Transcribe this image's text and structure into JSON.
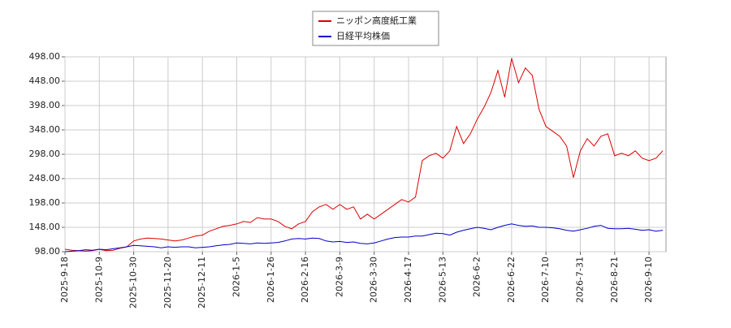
{
  "chart_data": {
    "type": "line",
    "categories": [
      "2025-9-18",
      null,
      null,
      null,
      null,
      "2025-10-9",
      null,
      null,
      null,
      null,
      "2025-10-30",
      null,
      null,
      null,
      null,
      "2025-11-20",
      null,
      null,
      null,
      null,
      "2025-12-11",
      null,
      null,
      null,
      null,
      "2026-1-5",
      null,
      null,
      null,
      null,
      "2026-1-26",
      null,
      null,
      null,
      null,
      "2026-2-16",
      null,
      null,
      null,
      null,
      "2026-3-9",
      null,
      null,
      null,
      null,
      "2026-3-30",
      null,
      null,
      null,
      null,
      "2026-4-17",
      null,
      null,
      null,
      null,
      "2026-5-13",
      null,
      null,
      null,
      null,
      "2026-6-2",
      null,
      null,
      null,
      null,
      "2026-6-22",
      null,
      null,
      null,
      null,
      "2026-7-10",
      null,
      null,
      null,
      null,
      "2026-7-31",
      null,
      null,
      null,
      null,
      "2026-8-21",
      null,
      null,
      null,
      null,
      "2026-9-10",
      null,
      null
    ],
    "series": [
      {
        "name": "ニッポン高度紙工業",
        "color": "#dd0000",
        "values": [
          103,
          101,
          100,
          99,
          100,
          103,
          100,
          101,
          105,
          108,
          120,
          124,
          126,
          125,
          124,
          122,
          120,
          122,
          126,
          130,
          132,
          140,
          145,
          150,
          152,
          155,
          160,
          158,
          168,
          165,
          165,
          160,
          150,
          145,
          155,
          160,
          180,
          190,
          195,
          185,
          195,
          185,
          190,
          165,
          175,
          165,
          175,
          185,
          195,
          205,
          200,
          210,
          285,
          295,
          300,
          290,
          305,
          355,
          320,
          340,
          370,
          395,
          425,
          470,
          415,
          495,
          445,
          475,
          460,
          390,
          355,
          345,
          335,
          315,
          250,
          305,
          330,
          315,
          335,
          340,
          295,
          300,
          295,
          305,
          290,
          285,
          290,
          305
        ]
      },
      {
        "name": "日経平均株価",
        "color": "#0000cc",
        "values": [
          98,
          99,
          100,
          102,
          101,
          103,
          102,
          104,
          106,
          108,
          111,
          110,
          109,
          108,
          106,
          108,
          107,
          108,
          108,
          106,
          107,
          108,
          110,
          112,
          113,
          116,
          115,
          114,
          116,
          115,
          116,
          117,
          120,
          124,
          125,
          124,
          126,
          125,
          120,
          118,
          119,
          117,
          118,
          115,
          114,
          116,
          120,
          124,
          127,
          128,
          128,
          130,
          130,
          133,
          136,
          135,
          132,
          138,
          142,
          145,
          148,
          146,
          143,
          148,
          152,
          155,
          152,
          150,
          151,
          148,
          148,
          147,
          145,
          142,
          140,
          143,
          146,
          150,
          152,
          146,
          145,
          145,
          146,
          144,
          142,
          143,
          140,
          142
        ]
      }
    ],
    "ylim": [
      98,
      498
    ],
    "yticks": [
      {
        "value": 98,
        "label": "98.00"
      },
      {
        "value": 148,
        "label": "148.00"
      },
      {
        "value": 198,
        "label": "198.00"
      },
      {
        "value": 248,
        "label": "248.00"
      },
      {
        "value": 298,
        "label": "298.00"
      },
      {
        "value": 348,
        "label": "348.00"
      },
      {
        "value": 398,
        "label": "398.00"
      },
      {
        "value": 448,
        "label": "448.00"
      },
      {
        "value": 498,
        "label": "498.00"
      }
    ],
    "grid": true
  }
}
